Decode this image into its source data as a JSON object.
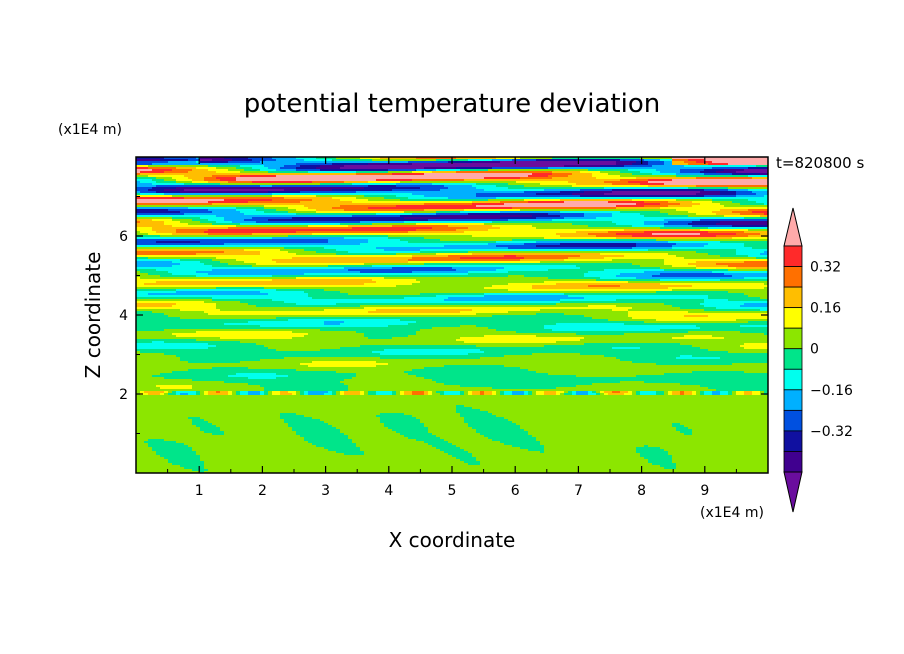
{
  "chart_data": {
    "type": "heatmap",
    "title": "potential temperature deviation",
    "time_label": "t=820800 s",
    "xlabel": "X coordinate",
    "ylabel": "Z coordinate",
    "x_unit": "(x1E4 m)",
    "y_unit": "(x1E4 m)",
    "xlim": [
      0,
      10
    ],
    "ylim": [
      0,
      8
    ],
    "xticks": [
      1,
      2,
      3,
      4,
      5,
      6,
      7,
      8,
      9
    ],
    "yticks": [
      2,
      4,
      6
    ],
    "colorbar": {
      "levels": [
        -0.48,
        -0.4,
        -0.32,
        -0.24,
        -0.16,
        -0.08,
        0,
        0.08,
        0.16,
        0.24,
        0.32,
        0.4
      ],
      "labeled_ticks": [
        -0.32,
        -0.16,
        0,
        0.16,
        0.32
      ],
      "tick_labels": [
        "−0.32",
        "−0.16",
        "0",
        "0.16",
        "0.32"
      ],
      "colors": [
        "#6a0d9e",
        "#40008f",
        "#1010a0",
        "#0050e0",
        "#00b0ff",
        "#00ffee",
        "#00e58a",
        "#8ce600",
        "#ffff00",
        "#ffbe00",
        "#ff7000",
        "#ff2a2a",
        "#ffaaaa"
      ],
      "extend": "both"
    },
    "grid": false
  }
}
